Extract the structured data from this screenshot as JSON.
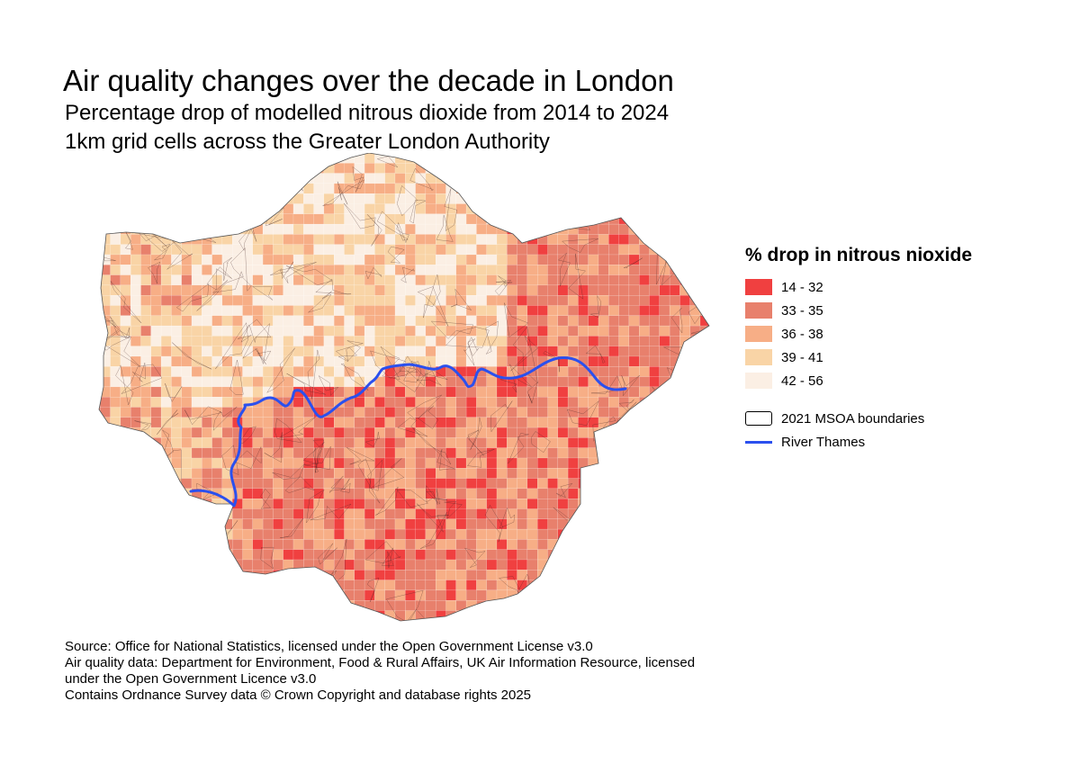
{
  "title": "Air quality changes over the decade in London",
  "subtitle_1": "Percentage drop of modelled nitrous dioxide from 2014 to 2024",
  "subtitle_2": "1km grid cells across the Greater London Authority",
  "legend": {
    "title": "% drop in nitrous nioxide",
    "classes": [
      {
        "label": "14 - 32",
        "color": "#f04040"
      },
      {
        "label": "33 - 35",
        "color": "#e8806c"
      },
      {
        "label": "36 - 38",
        "color": "#f7ae86"
      },
      {
        "label": "39 - 41",
        "color": "#f9d4a6"
      },
      {
        "label": "42 - 56",
        "color": "#fbefe4"
      }
    ],
    "boundaries_label": "2021 MSOA boundaries",
    "river_label": "River Thames",
    "river_color": "#2b50ee"
  },
  "footer": {
    "line1": "Source: Office for National Statistics, licensed under the Open Government License v3.0",
    "line2": "Air quality data: Department for Environment, Food & Rural Affairs, UK Air Information Resource, licensed",
    "line3": "under the Open Government Licence v3.0",
    "line4": "Contains Ordnance Survey data © Crown Copyright and database rights 2025"
  }
}
